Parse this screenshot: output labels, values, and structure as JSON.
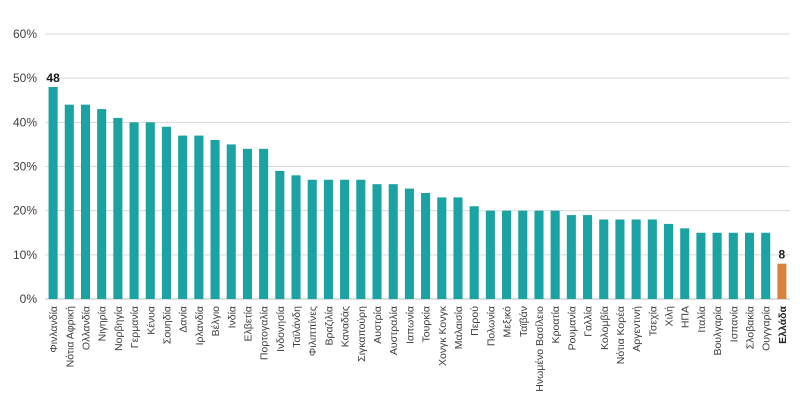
{
  "chart_data": {
    "type": "bar",
    "title": "",
    "xlabel": "",
    "ylabel": "",
    "ylim": [
      0,
      60
    ],
    "yticks": [
      0,
      10,
      20,
      30,
      40,
      50,
      60
    ],
    "ytick_format": "percent",
    "grid": true,
    "legend": "none",
    "colors": {
      "default": "#1ba3a3",
      "highlight": "#d9823b",
      "grid": "#d9d9d9"
    },
    "highlight_category": "Ελλάδα",
    "categories": [
      "Φινλανδία",
      "Νότια Αφρική",
      "Ολλανδία",
      "Νιγηρία",
      "Νορβηγία",
      "Γερμανία",
      "Κένυα",
      "Σουηδία",
      "Δανία",
      "Ιρλανδία",
      "Βέλγιο",
      "Ινδία",
      "Ελβετία",
      "Πορτογαλία",
      "Ινδονησία",
      "Ταϊλάνδη",
      "Φιλιππίνες",
      "Βραζιλία",
      "Καναδάς",
      "Σιγκαπούρη",
      "Αυστρία",
      "Αυστραλία",
      "Ιαπωνία",
      "Τουρκία",
      "Χονγκ Κονγκ",
      "Μαλαισία",
      "Περού",
      "Πολωνία",
      "Μεξικό",
      "Ταϊβάν",
      "Ηνωμένο Βασίλειο",
      "Κροατία",
      "Ρουμανία",
      "Γαλλία",
      "Κολομβία",
      "Νότια Κορέα",
      "Αργεντινή",
      "Τσεχία",
      "Χιλή",
      "ΗΠΑ",
      "Ιταλία",
      "Βουλγαρία",
      "Ισπανία",
      "Σλοβακία",
      "Ουγγαρία",
      "Ελλάδα"
    ],
    "values": [
      48,
      44,
      44,
      43,
      41,
      40,
      40,
      39,
      37,
      37,
      36,
      35,
      34,
      34,
      29,
      28,
      27,
      27,
      27,
      27,
      26,
      26,
      25,
      24,
      23,
      23,
      21,
      20,
      20,
      20,
      20,
      20,
      19,
      19,
      18,
      18,
      18,
      18,
      17,
      16,
      15,
      15,
      15,
      15,
      15,
      8
    ],
    "data_labels": [
      {
        "category": "Φινλανδία",
        "text": "48"
      },
      {
        "category": "Ελλάδα",
        "text": "8"
      }
    ]
  }
}
